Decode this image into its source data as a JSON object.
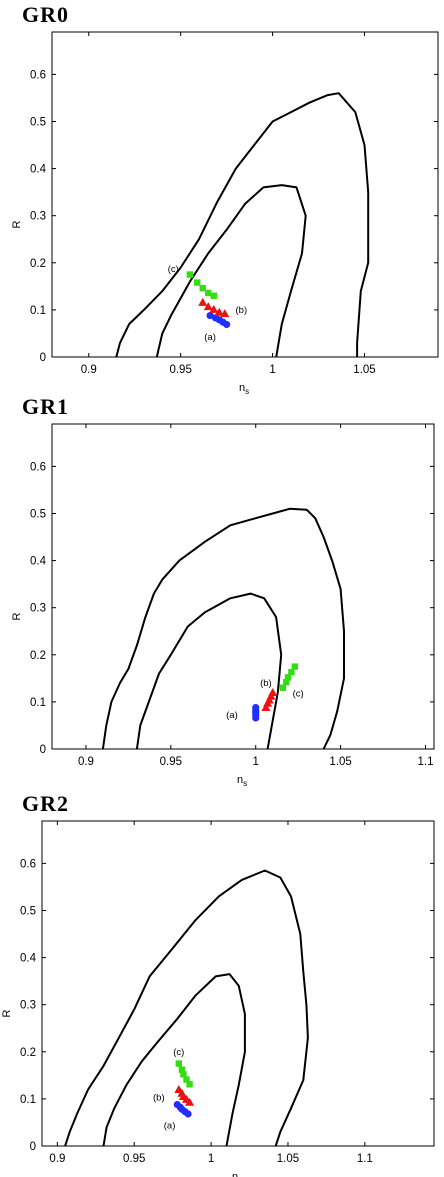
{
  "colors": {
    "scalar_a": "#1f2fff",
    "scalar_b": "#ee1111",
    "scalar_c": "#33dd11",
    "contour": "#000000"
  },
  "chart_data": [
    {
      "type": "scatter",
      "title": "GR0",
      "xlabel": "n_s",
      "xlabel_main": "n",
      "xlabel_sub": "s",
      "ylabel": "R",
      "xlim": [
        0.88,
        1.09
      ],
      "ylim": [
        0,
        0.69
      ],
      "xticks": [
        0.9,
        0.95,
        1.0,
        1.05
      ],
      "xtick_labels": [
        "0.9",
        "0.95",
        "1",
        "1.05"
      ],
      "yticks": [
        0,
        0.1,
        0.2,
        0.3,
        0.4,
        0.5,
        0.6
      ],
      "ytick_labels": [
        "0",
        "0.1",
        "0.2",
        "0.3",
        "0.4",
        "0.5",
        "0.6"
      ],
      "grid": false,
      "contours": [
        [
          [
            0.915,
            0
          ],
          [
            0.917,
            0.03
          ],
          [
            0.922,
            0.07
          ],
          [
            0.93,
            0.1
          ],
          [
            0.94,
            0.14
          ],
          [
            0.95,
            0.19
          ],
          [
            0.96,
            0.25
          ],
          [
            0.97,
            0.33
          ],
          [
            0.98,
            0.4
          ],
          [
            0.99,
            0.45
          ],
          [
            1.0,
            0.5
          ],
          [
            1.01,
            0.52
          ],
          [
            1.02,
            0.54
          ],
          [
            1.03,
            0.556
          ],
          [
            1.036,
            0.56
          ],
          [
            1.045,
            0.52
          ],
          [
            1.05,
            0.45
          ],
          [
            1.052,
            0.35
          ],
          [
            1.052,
            0.2
          ],
          [
            1.048,
            0.14
          ],
          [
            1.046,
            0.03
          ],
          [
            1.046,
            0
          ]
        ],
        [
          [
            0.937,
            0
          ],
          [
            0.94,
            0.05
          ],
          [
            0.945,
            0.09
          ],
          [
            0.955,
            0.16
          ],
          [
            0.965,
            0.22
          ],
          [
            0.975,
            0.27
          ],
          [
            0.985,
            0.325
          ],
          [
            0.995,
            0.36
          ],
          [
            1.005,
            0.365
          ],
          [
            1.013,
            0.36
          ],
          [
            1.018,
            0.3
          ],
          [
            1.016,
            0.22
          ],
          [
            1.01,
            0.14
          ],
          [
            1.005,
            0.07
          ],
          [
            1.002,
            0
          ]
        ]
      ],
      "series": [
        {
          "label": "(a)",
          "marker": "circle",
          "color_key": "scalar_a",
          "points": [
            [
              0.966,
              0.088
            ],
            [
              0.969,
              0.083
            ],
            [
              0.971,
              0.079
            ],
            [
              0.973,
              0.074
            ],
            [
              0.975,
              0.069
            ]
          ],
          "label_at": [
            0.966,
            0.042
          ]
        },
        {
          "label": "(b)",
          "marker": "triangle",
          "color_key": "scalar_b",
          "points": [
            [
              0.962,
              0.116
            ],
            [
              0.965,
              0.107
            ],
            [
              0.968,
              0.101
            ],
            [
              0.971,
              0.095
            ],
            [
              0.974,
              0.092
            ]
          ],
          "label_at": [
            0.983,
            0.1
          ]
        },
        {
          "label": "(c)",
          "marker": "square",
          "color_key": "scalar_c",
          "points": [
            [
              0.955,
              0.175
            ],
            [
              0.959,
              0.158
            ],
            [
              0.962,
              0.146
            ],
            [
              0.965,
              0.136
            ],
            [
              0.968,
              0.13
            ]
          ],
          "label_at": [
            0.946,
            0.187
          ]
        }
      ]
    },
    {
      "type": "scatter",
      "title": "GR1",
      "xlabel": "n_s",
      "xlabel_main": "n",
      "xlabel_sub": "s",
      "ylabel": "R",
      "xlim": [
        0.88,
        1.105
      ],
      "ylim": [
        0,
        0.69
      ],
      "xticks": [
        0.9,
        0.95,
        1.0,
        1.05,
        1.1
      ],
      "xtick_labels": [
        "0.9",
        "0.95",
        "1",
        "1.05",
        "1.1"
      ],
      "yticks": [
        0,
        0.1,
        0.2,
        0.3,
        0.4,
        0.5,
        0.6
      ],
      "ytick_labels": [
        "0",
        "0.1",
        "0.2",
        "0.3",
        "0.4",
        "0.5",
        "0.6"
      ],
      "grid": false,
      "contours": [
        [
          [
            0.91,
            0
          ],
          [
            0.912,
            0.05
          ],
          [
            0.915,
            0.1
          ],
          [
            0.92,
            0.14
          ],
          [
            0.925,
            0.17
          ],
          [
            0.93,
            0.22
          ],
          [
            0.935,
            0.28
          ],
          [
            0.94,
            0.33
          ],
          [
            0.945,
            0.36
          ],
          [
            0.955,
            0.4
          ],
          [
            0.97,
            0.44
          ],
          [
            0.985,
            0.475
          ],
          [
            1.0,
            0.49
          ],
          [
            1.01,
            0.5
          ],
          [
            1.02,
            0.51
          ],
          [
            1.03,
            0.508
          ],
          [
            1.035,
            0.49
          ],
          [
            1.04,
            0.45
          ],
          [
            1.045,
            0.4
          ],
          [
            1.05,
            0.34
          ],
          [
            1.052,
            0.25
          ],
          [
            1.052,
            0.15
          ],
          [
            1.048,
            0.08
          ],
          [
            1.044,
            0.03
          ],
          [
            1.04,
            0
          ]
        ],
        [
          [
            0.93,
            0
          ],
          [
            0.932,
            0.05
          ],
          [
            0.937,
            0.1
          ],
          [
            0.943,
            0.16
          ],
          [
            0.95,
            0.2
          ],
          [
            0.96,
            0.26
          ],
          [
            0.97,
            0.29
          ],
          [
            0.985,
            0.32
          ],
          [
            0.997,
            0.33
          ],
          [
            1.005,
            0.32
          ],
          [
            1.012,
            0.28
          ],
          [
            1.015,
            0.2
          ],
          [
            1.013,
            0.12
          ],
          [
            1.01,
            0.06
          ],
          [
            1.007,
            0
          ]
        ]
      ],
      "series": [
        {
          "label": "(a)",
          "marker": "circle",
          "color_key": "scalar_a",
          "points": [
            [
              1.0,
              0.088
            ],
            [
              1.0,
              0.082
            ],
            [
              1.0,
              0.077
            ],
            [
              1.0,
              0.072
            ],
            [
              1.0,
              0.066
            ]
          ],
          "label_at": [
            0.986,
            0.072
          ]
        },
        {
          "label": "(b)",
          "marker": "triangle",
          "color_key": "scalar_b",
          "points": [
            [
              1.006,
              0.088
            ],
            [
              1.007,
              0.097
            ],
            [
              1.008,
              0.104
            ],
            [
              1.009,
              0.112
            ],
            [
              1.01,
              0.12
            ]
          ],
          "label_at": [
            1.006,
            0.14
          ]
        },
        {
          "label": "(c)",
          "marker": "square",
          "color_key": "scalar_c",
          "points": [
            [
              1.016,
              0.13
            ],
            [
              1.018,
              0.142
            ],
            [
              1.019,
              0.152
            ],
            [
              1.021,
              0.163
            ],
            [
              1.023,
              0.175
            ]
          ],
          "label_at": [
            1.025,
            0.118
          ]
        }
      ]
    },
    {
      "type": "scatter",
      "title": "GR2",
      "xlabel": "n_s",
      "xlabel_main": "n",
      "xlabel_sub": "s",
      "ylabel": "R",
      "xlim": [
        0.89,
        1.145
      ],
      "ylim": [
        0,
        0.69
      ],
      "xticks": [
        0.9,
        0.95,
        1.0,
        1.05,
        1.1
      ],
      "xtick_labels": [
        "0.9",
        "0.95",
        "1",
        "1.05",
        "1.1"
      ],
      "yticks": [
        0,
        0.1,
        0.2,
        0.3,
        0.4,
        0.5,
        0.6
      ],
      "ytick_labels": [
        "0",
        "0.1",
        "0.2",
        "0.3",
        "0.4",
        "0.5",
        "0.6"
      ],
      "grid": false,
      "contours": [
        [
          [
            0.905,
            0
          ],
          [
            0.908,
            0.03
          ],
          [
            0.913,
            0.07
          ],
          [
            0.92,
            0.12
          ],
          [
            0.93,
            0.17
          ],
          [
            0.94,
            0.23
          ],
          [
            0.95,
            0.29
          ],
          [
            0.96,
            0.36
          ],
          [
            0.975,
            0.42
          ],
          [
            0.99,
            0.48
          ],
          [
            1.005,
            0.53
          ],
          [
            1.02,
            0.565
          ],
          [
            1.035,
            0.585
          ],
          [
            1.045,
            0.57
          ],
          [
            1.052,
            0.53
          ],
          [
            1.058,
            0.45
          ],
          [
            1.06,
            0.37
          ],
          [
            1.062,
            0.3
          ],
          [
            1.063,
            0.23
          ],
          [
            1.06,
            0.14
          ],
          [
            1.052,
            0.08
          ],
          [
            1.045,
            0.03
          ],
          [
            1.042,
            0
          ]
        ],
        [
          [
            0.93,
            0
          ],
          [
            0.932,
            0.04
          ],
          [
            0.937,
            0.08
          ],
          [
            0.945,
            0.13
          ],
          [
            0.955,
            0.18
          ],
          [
            0.965,
            0.22
          ],
          [
            0.978,
            0.27
          ],
          [
            0.99,
            0.32
          ],
          [
            1.003,
            0.36
          ],
          [
            1.012,
            0.365
          ],
          [
            1.018,
            0.34
          ],
          [
            1.022,
            0.28
          ],
          [
            1.022,
            0.2
          ],
          [
            1.018,
            0.13
          ],
          [
            1.014,
            0.07
          ],
          [
            1.01,
            0
          ]
        ]
      ],
      "series": [
        {
          "label": "(a)",
          "marker": "circle",
          "color_key": "scalar_a",
          "points": [
            [
              0.978,
              0.088
            ],
            [
              0.98,
              0.082
            ],
            [
              0.981,
              0.078
            ],
            [
              0.983,
              0.073
            ],
            [
              0.985,
              0.068
            ]
          ],
          "label_at": [
            0.973,
            0.043
          ]
        },
        {
          "label": "(b)",
          "marker": "triangle",
          "color_key": "scalar_b",
          "points": [
            [
              0.979,
              0.12
            ],
            [
              0.981,
              0.112
            ],
            [
              0.982,
              0.105
            ],
            [
              0.984,
              0.099
            ],
            [
              0.986,
              0.093
            ]
          ],
          "label_at": [
            0.966,
            0.103
          ]
        },
        {
          "label": "(c)",
          "marker": "square",
          "color_key": "scalar_c",
          "points": [
            [
              0.979,
              0.175
            ],
            [
              0.981,
              0.162
            ],
            [
              0.982,
              0.152
            ],
            [
              0.984,
              0.141
            ],
            [
              0.986,
              0.131
            ]
          ],
          "label_at": [
            0.979,
            0.2
          ]
        }
      ]
    }
  ]
}
